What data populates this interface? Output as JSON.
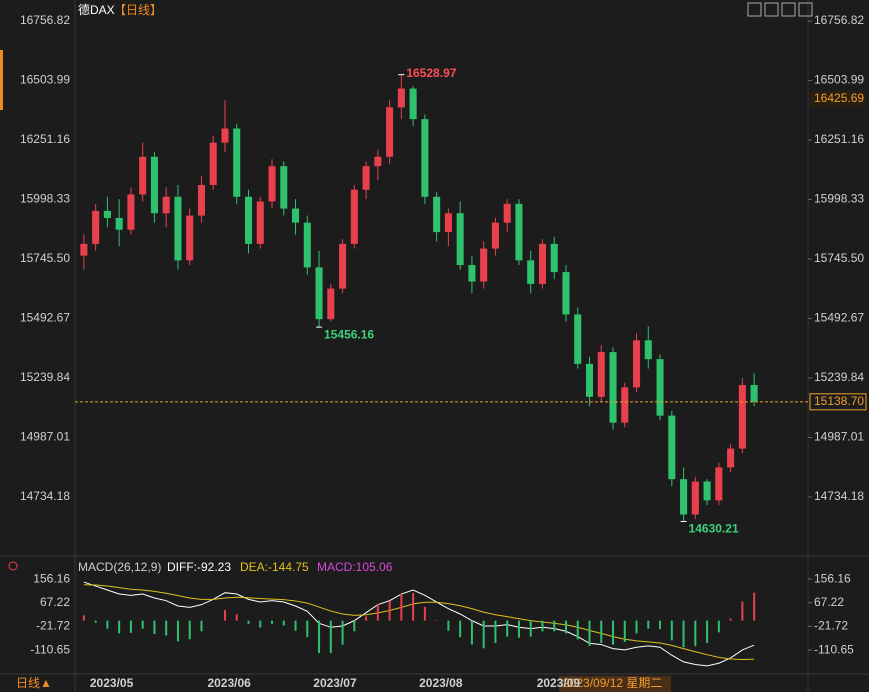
{
  "chart_data": [
    {
      "type": "candlestick",
      "title": "德DAX",
      "subtitle": "【日线】",
      "categories": [
        "2023/05",
        null,
        null,
        null,
        null,
        null,
        null,
        null,
        null,
        null,
        "2023/06",
        null,
        null,
        null,
        null,
        null,
        null,
        null,
        null,
        "2023/07",
        null,
        null,
        null,
        null,
        null,
        null,
        null,
        null,
        "2023/08",
        null,
        null,
        null,
        null,
        null,
        null,
        null,
        null,
        null,
        "2023/09",
        null,
        null,
        null,
        null,
        null,
        null,
        null,
        null,
        null,
        null,
        null,
        null,
        null,
        null,
        null,
        null,
        null,
        null,
        null
      ],
      "open": [
        15760,
        15810,
        15950,
        15920,
        15870,
        16020,
        16180,
        15940,
        16010,
        15740,
        15930,
        16060,
        16240,
        16300,
        16010,
        15810,
        15990,
        16140,
        15960,
        15900,
        15710,
        15490,
        15620,
        15810,
        16040,
        16140,
        16180,
        16390,
        16470,
        16340,
        16010,
        15860,
        15940,
        15720,
        15650,
        15790,
        15900,
        15980,
        15740,
        15640,
        15810,
        15690,
        15510,
        15300,
        15160,
        15350,
        15050,
        15200,
        15400,
        15320,
        15080,
        14810,
        14660,
        14800,
        14720,
        14860,
        14940,
        15210
      ],
      "high": [
        15850,
        15980,
        16010,
        16000,
        16050,
        16240,
        16200,
        16050,
        16060,
        15960,
        16100,
        16270,
        16420,
        16320,
        16040,
        16010,
        16170,
        16160,
        16000,
        15930,
        15780,
        15640,
        15830,
        16060,
        16160,
        16210,
        16420,
        16528.97,
        16480,
        16360,
        16030,
        15960,
        15990,
        15760,
        15820,
        15920,
        16000,
        16000,
        15780,
        15830,
        15840,
        15720,
        15540,
        15330,
        15380,
        15370,
        15220,
        15430,
        15460,
        15340,
        15100,
        14860,
        14820,
        14810,
        14880,
        14960,
        15240,
        15260
      ],
      "low": [
        15700,
        15780,
        15880,
        15800,
        15850,
        15990,
        15900,
        15880,
        15700,
        15720,
        15900,
        16040,
        16200,
        15980,
        15770,
        15790,
        15960,
        15930,
        15850,
        15680,
        15456.16,
        15480,
        15600,
        15790,
        16000,
        16080,
        16150,
        16340,
        16310,
        15980,
        15820,
        15800,
        15700,
        15600,
        15620,
        15760,
        15860,
        15720,
        15600,
        15620,
        15660,
        15480,
        15280,
        15120,
        15140,
        15020,
        15030,
        15180,
        15280,
        15060,
        14780,
        14630.21,
        14640,
        14700,
        14700,
        14840,
        14920,
        15120
      ],
      "close": [
        15810,
        15950,
        15920,
        15870,
        16020,
        16180,
        15940,
        16010,
        15740,
        15930,
        16060,
        16240,
        16300,
        16010,
        15810,
        15990,
        16140,
        15960,
        15900,
        15710,
        15490,
        15620,
        15810,
        16040,
        16140,
        16180,
        16390,
        16470,
        16340,
        16010,
        15860,
        15940,
        15720,
        15650,
        15790,
        15900,
        15980,
        15740,
        15640,
        15810,
        15690,
        15510,
        15300,
        15160,
        15350,
        15050,
        15200,
        15400,
        15320,
        15080,
        14810,
        14660,
        14800,
        14720,
        14860,
        14940,
        15210,
        15138.7
      ],
      "up_color": "#e8414d",
      "down_color": "#2fc26e",
      "ylim": [
        14509,
        16825
      ],
      "yticks": [
        16756.82,
        16503.99,
        16251.16,
        15998.33,
        {
          "value": 15745.5,
          "label": "15745.50"
        },
        15492.67,
        15239.84,
        14987.01,
        14734.18
      ],
      "reference_line": {
        "value": 15138.7,
        "label": "15138.70",
        "color": "#f0a030"
      },
      "crosshair": {
        "price": 16425.69,
        "date": "2023/09/12 星期二",
        "color": "#f0a030"
      }
    },
    {
      "type": "macd",
      "title": "MACD(26,12,9)",
      "series": [
        {
          "name": "DIFF:-92.23",
          "color": "#ffffff",
          "values": [
            145,
            130,
            115,
            100,
            95,
            100,
            85,
            75,
            55,
            50,
            60,
            80,
            105,
            100,
            80,
            70,
            75,
            70,
            55,
            35,
            -10,
            -25,
            -20,
            0,
            30,
            60,
            75,
            100,
            115,
            95,
            70,
            45,
            25,
            0,
            -20,
            -20,
            -15,
            -25,
            -30,
            -25,
            -30,
            -40,
            -60,
            -85,
            -90,
            -105,
            -110,
            -100,
            -95,
            -100,
            -130,
            -155,
            -165,
            -170,
            -160,
            -140,
            -110,
            -92.23
          ]
        },
        {
          "name": "DEA:-144.75",
          "color": "#e0c21c",
          "values": [
            135,
            134,
            130,
            124,
            118,
            115,
            110,
            103,
            94,
            85,
            80,
            80,
            85,
            88,
            86,
            83,
            81,
            79,
            74,
            66,
            51,
            36,
            25,
            20,
            22,
            29,
            38,
            50,
            63,
            69,
            69,
            64,
            56,
            45,
            32,
            22,
            15,
            7,
            0,
            -5,
            -10,
            -16,
            -25,
            -37,
            -48,
            -60,
            -70,
            -76,
            -80,
            -84,
            -93,
            -105,
            -117,
            -128,
            -138,
            -144,
            -146,
            -144.75
          ]
        },
        {
          "name": "MACD:105.06",
          "color": "#d84ad8",
          "up_color": "#e8414d",
          "down_color": "#2fc26e",
          "values": [
            20,
            -8,
            -30,
            -48,
            -46,
            -30,
            -50,
            -56,
            -78,
            -70,
            -40,
            0,
            40,
            24,
            -12,
            -26,
            -12,
            -18,
            -38,
            -62,
            -122,
            -122,
            -90,
            -40,
            16,
            62,
            74,
            100,
            104,
            52,
            2,
            -38,
            -62,
            -90,
            -104,
            -84,
            -60,
            -64,
            -60,
            -40,
            -40,
            -48,
            -70,
            -96,
            -84,
            -90,
            -80,
            -48,
            -30,
            -32,
            -74,
            -100,
            -96,
            -84,
            -44,
            8,
            72,
            105.06
          ]
        }
      ],
      "ylim": [
        -193,
        179
      ],
      "yticks": [
        156.16,
        67.22,
        -21.72,
        -110.65
      ]
    }
  ],
  "footer": {
    "period": "日线▲"
  }
}
